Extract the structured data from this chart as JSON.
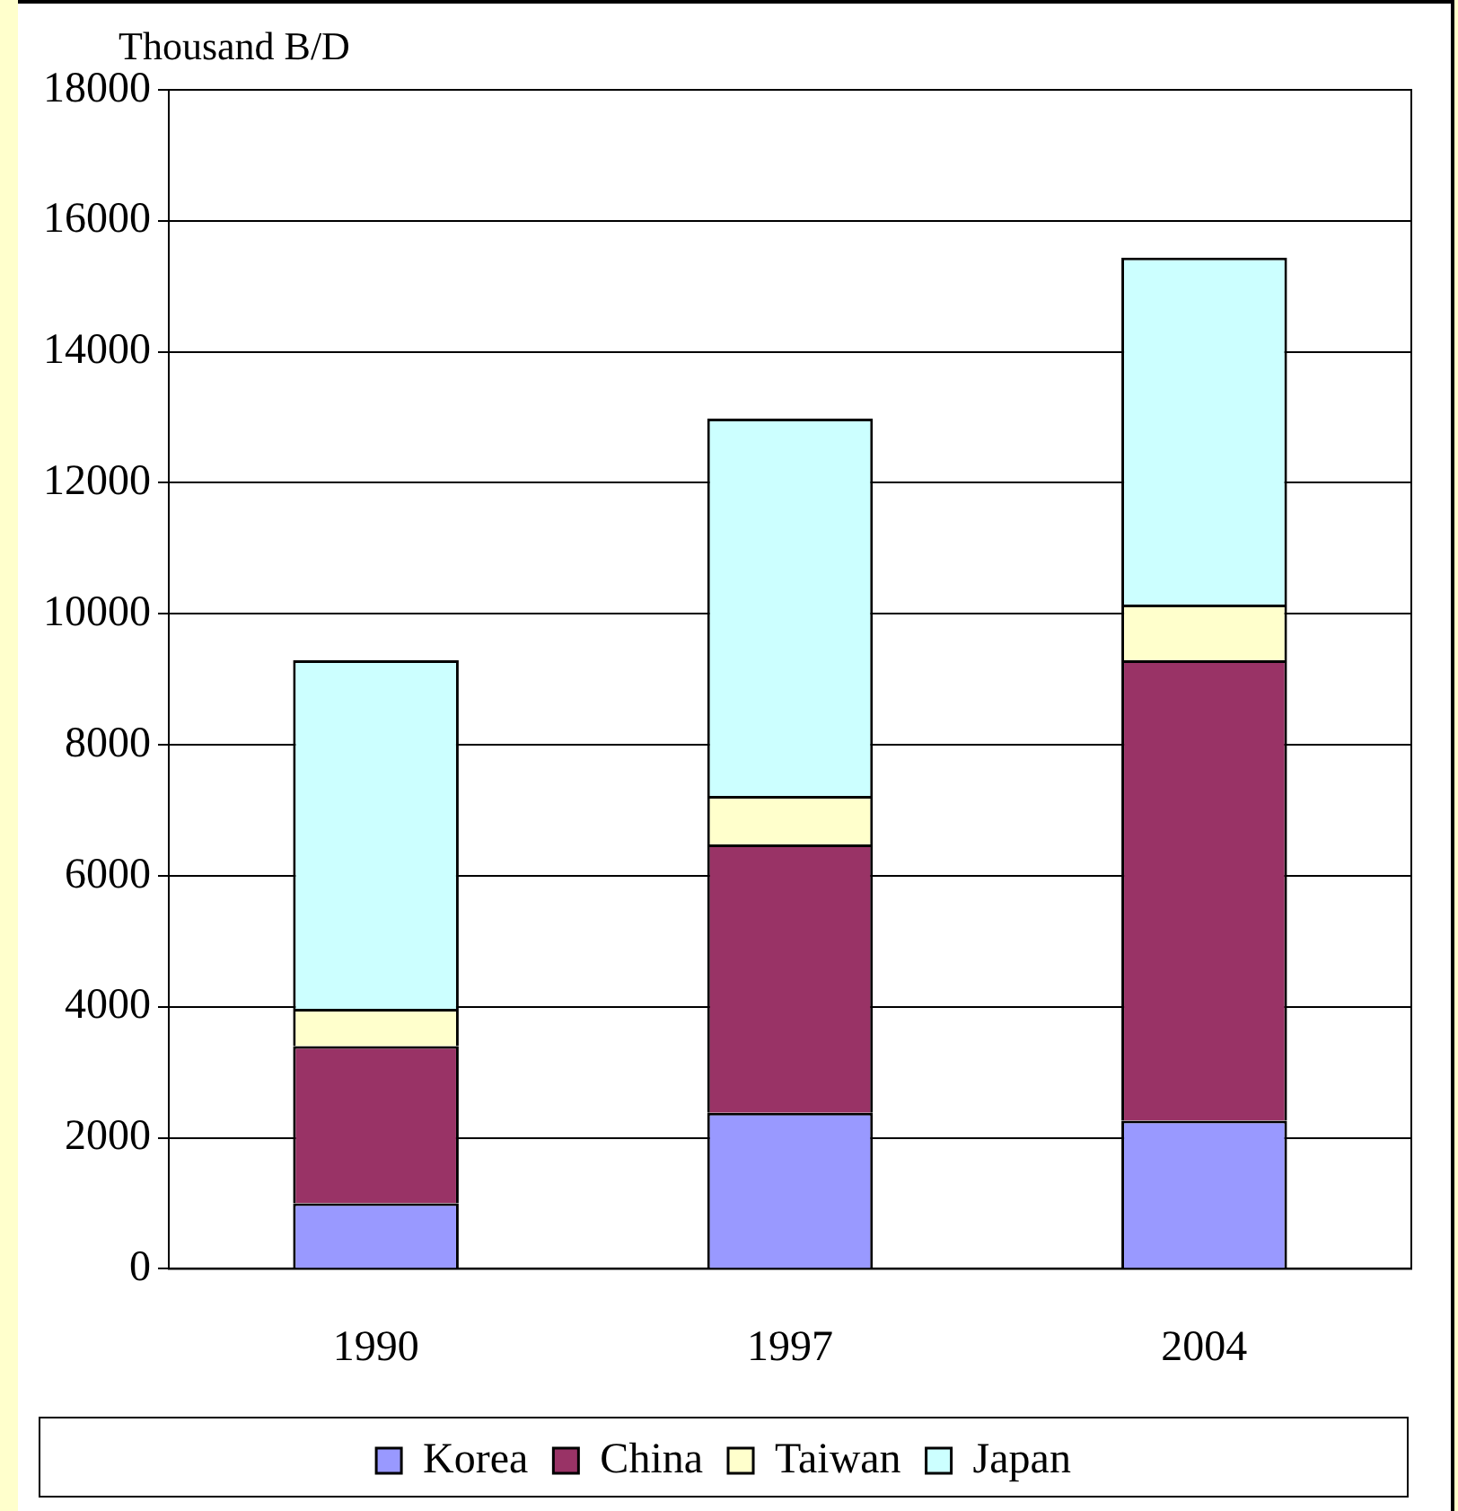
{
  "chart_data": {
    "type": "bar",
    "stacked": true,
    "ylabel": "Thousand B/D",
    "categories": [
      "1990",
      "1997",
      "2004"
    ],
    "series": [
      {
        "name": "Korea",
        "color": "#9999ff",
        "values": [
          1000,
          2380,
          2260
        ]
      },
      {
        "name": "China",
        "color": "#993366",
        "values": [
          2400,
          4100,
          7030
        ]
      },
      {
        "name": "Taiwan",
        "color": "#ffffcc",
        "values": [
          570,
          740,
          850
        ]
      },
      {
        "name": "Japan",
        "color": "#ccffff",
        "values": [
          5320,
          5760,
          5300
        ]
      }
    ],
    "ylim": [
      0,
      18000
    ],
    "yticks": [
      0,
      2000,
      4000,
      6000,
      8000,
      10000,
      12000,
      14000,
      16000,
      18000
    ],
    "grid": "y",
    "legend": "bottom"
  }
}
